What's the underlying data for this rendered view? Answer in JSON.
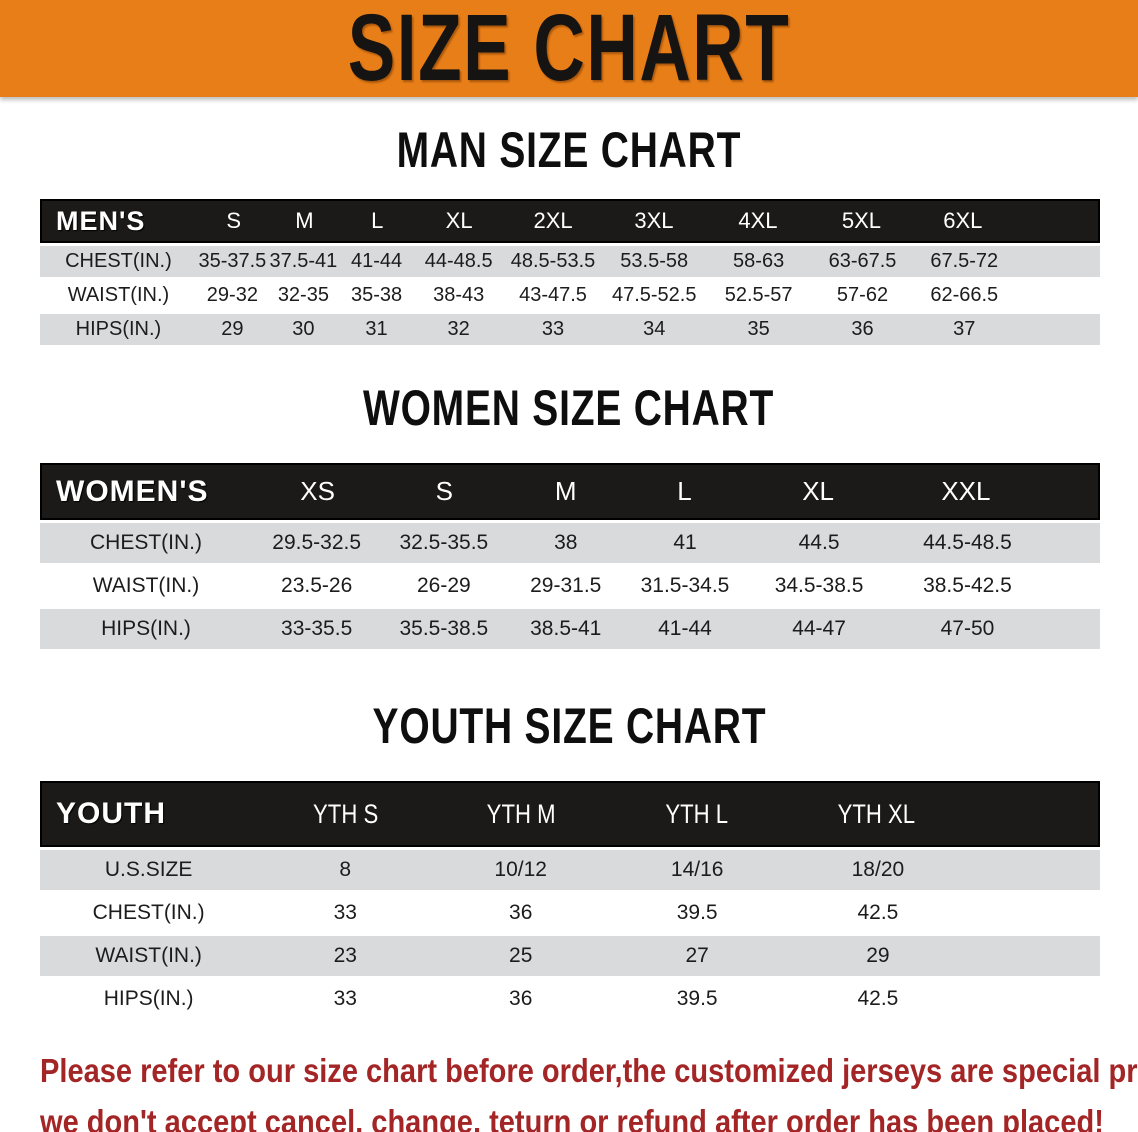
{
  "banner": {
    "title": "SIZE CHART"
  },
  "colors": {
    "banner_bg": "#e87e17",
    "header_bg": "#1b1a19",
    "row_alt": "#d9dadb",
    "footer_text": "#a42525"
  },
  "sections": [
    {
      "id": "men",
      "heading": "MAN SIZE CHART",
      "table": {
        "header_label": "MEN'S",
        "columns": [
          "S",
          "M",
          "L",
          "XL",
          "2XL",
          "3XL",
          "4XL",
          "5XL",
          "6XL"
        ],
        "rows": [
          {
            "label": "CHEST(IN.)",
            "values": [
              "35-37.5",
              "37.5-41",
              "41-44",
              "44-48.5",
              "48.5-53.5",
              "53.5-58",
              "58-63",
              "63-67.5",
              "67.5-72"
            ]
          },
          {
            "label": "WAIST(IN.)",
            "values": [
              "29-32",
              "32-35",
              "35-38",
              "38-43",
              "43-47.5",
              "47.5-52.5",
              "52.5-57",
              "57-62",
              "62-66.5"
            ]
          },
          {
            "label": "HIPS(IN.)",
            "values": [
              "29",
              "30",
              "31",
              "32",
              "33",
              "34",
              "35",
              "36",
              "37"
            ]
          }
        ]
      }
    },
    {
      "id": "women",
      "heading": "WOMEN SIZE CHART",
      "table": {
        "header_label": "WOMEN'S",
        "columns": [
          "XS",
          "S",
          "M",
          "L",
          "XL",
          "XXL"
        ],
        "rows": [
          {
            "label": "CHEST(IN.)",
            "values": [
              "29.5-32.5",
              "32.5-35.5",
              "38",
              "41",
              "44.5",
              "44.5-48.5"
            ]
          },
          {
            "label": "WAIST(IN.)",
            "values": [
              "23.5-26",
              "26-29",
              "29-31.5",
              "31.5-34.5",
              "34.5-38.5",
              "38.5-42.5"
            ]
          },
          {
            "label": "HIPS(IN.)",
            "values": [
              "33-35.5",
              "35.5-38.5",
              "38.5-41",
              "41-44",
              "44-47",
              "47-50"
            ]
          }
        ]
      }
    },
    {
      "id": "youth",
      "heading": "YOUTH SIZE CHART",
      "table": {
        "header_label": "YOUTH",
        "columns": [
          "YTH S",
          "YTH M",
          "YTH L",
          "YTH XL"
        ],
        "rows": [
          {
            "label": "U.S.SIZE",
            "values": [
              "8",
              "10/12",
              "14/16",
              "18/20"
            ]
          },
          {
            "label": "CHEST(IN.)",
            "values": [
              "33",
              "36",
              "39.5",
              "42.5"
            ]
          },
          {
            "label": "WAIST(IN.)",
            "values": [
              "23",
              "25",
              "27",
              "29"
            ]
          },
          {
            "label": "HIPS(IN.)",
            "values": [
              "33",
              "36",
              "39.5",
              "42.5"
            ]
          }
        ]
      }
    }
  ],
  "footer": {
    "line1": "Please refer to our size chart before order,the customized jerseys are special products,",
    "line2": "we don't accept cancel, change, teturn or refund after order has been placed!"
  }
}
